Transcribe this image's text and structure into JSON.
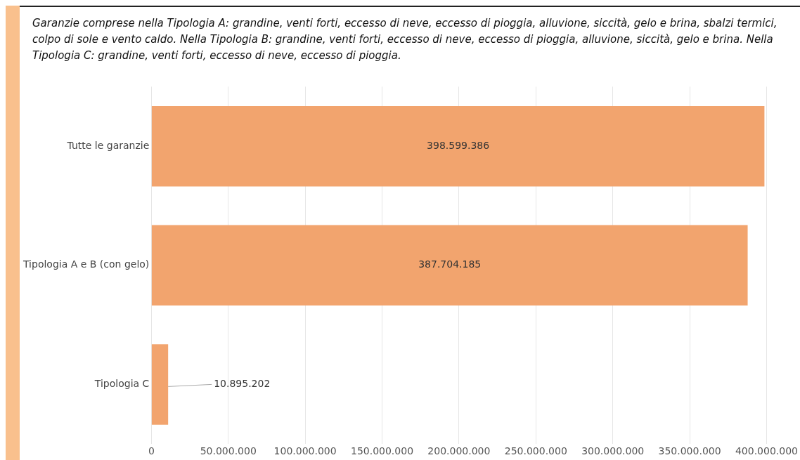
{
  "chart_data": {
    "type": "bar",
    "orientation": "horizontal",
    "title": "Garanzie comprese nella Tipologia A: grandine, venti forti, eccesso di neve, eccesso di pioggia, alluvione, siccità, gelo e brina, sbalzi termici, colpo di sole e vento caldo. Nella Tipologia B: grandine, venti forti, eccesso di neve, eccesso di pioggia, alluvione, siccità, gelo e brina. Nella Tipologia C: grandine, venti forti, eccesso di neve, eccesso di pioggia.",
    "categories": [
      "Tutte le garanzie",
      "Tipologia A e B (con gelo)",
      "Tipologia C"
    ],
    "values": [
      398599386,
      387704185,
      10895202
    ],
    "value_labels": [
      "398.599.386",
      "387.704.185",
      "10.895.202"
    ],
    "color": "#f2a46e",
    "xlim": [
      0,
      400000000
    ],
    "xticks": [
      0,
      {
        "value": 50000000,
        "label": "50.000.000"
      },
      {
        "value": 100000000,
        "label": "100.000.000"
      },
      {
        "value": 150000000,
        "label": "150.000.000"
      },
      {
        "value": 200000000,
        "label": "200.000.000"
      },
      {
        "value": 250000000,
        "label": "250.000.000"
      },
      {
        "value": 300000000,
        "label": "300.000.000"
      },
      {
        "value": 350000000,
        "label": "350.000.000"
      },
      {
        "value": 400000000,
        "label": "400.000.000"
      }
    ],
    "grid": "x"
  }
}
